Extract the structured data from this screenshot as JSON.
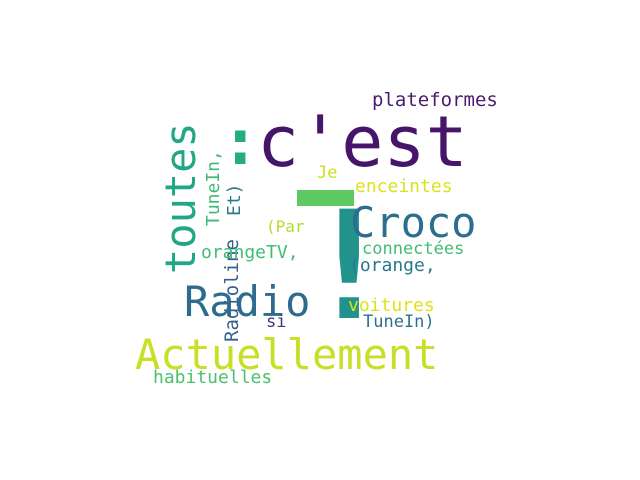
{
  "words": {
    "cest": {
      "text": "c'est",
      "color": "#46156a"
    },
    "exclam_big": {
      "text": "!",
      "color": "#21928c"
    },
    "colon": {
      "text": ":",
      "color": "#25ad80"
    },
    "toutes": {
      "text": "toutes",
      "color": "#22a785"
    },
    "croco": {
      "text": "Croco",
      "color": "#2b6f8e"
    },
    "radio": {
      "text": "Radio",
      "color": "#2e6c8e"
    },
    "actuellement": {
      "text": "Actuellement",
      "color": "#c7df25"
    },
    "plateformes": {
      "text": "plateformes",
      "color": "#4b1c6e"
    },
    "enceintes": {
      "text": "enceintes",
      "color": "#dbe31f"
    },
    "je": {
      "text": "Je",
      "color": "#cfe11c"
    },
    "tiret": {
      "text": "-",
      "color": "#5ec962"
    },
    "par": {
      "text": "(Par",
      "color": "#b2dc2c"
    },
    "connectees": {
      "text": "connectées",
      "color": "#3fbc73"
    },
    "orange": {
      "text": "(orange,",
      "color": "#2a788e"
    },
    "orangetv": {
      "text": "orangeTV,",
      "color": "#40bd72"
    },
    "voitures": {
      "text": "voitures",
      "color": "#dde318"
    },
    "si": {
      "text": "si",
      "color": "#46337e"
    },
    "tunein_close": {
      "text": "TuneIn)",
      "color": "#2c728e"
    },
    "habituelles": {
      "text": "habituelles",
      "color": "#4ac16d"
    },
    "tunein_v": {
      "text": "TuneIn,",
      "color": "#3bbb75"
    },
    "et": {
      "text": "Et)",
      "color": "#2a788e"
    },
    "radioline": {
      "text": "Radioline",
      "color": "#355f8d"
    }
  }
}
